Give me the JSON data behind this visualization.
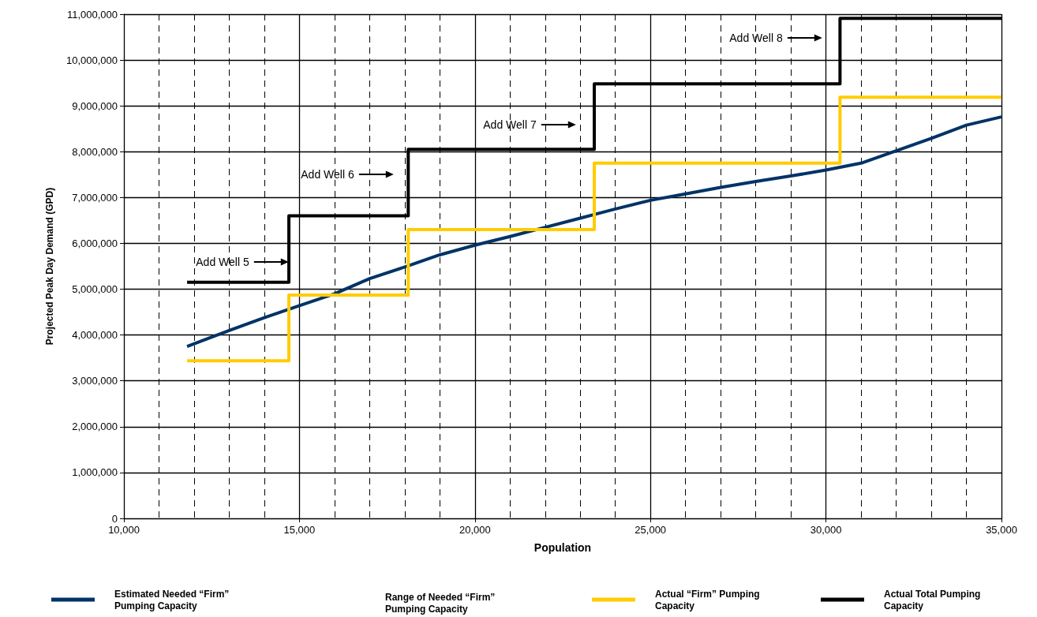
{
  "chart_data": {
    "type": "line",
    "xlabel": "Population",
    "ylabel": "Projected Peak Day Demand (GPD)",
    "xlim": [
      10000,
      35000
    ],
    "xticks": [
      {
        "value": 10000,
        "label": "10,000"
      },
      {
        "value": 11000,
        "label": null
      },
      {
        "value": 12000,
        "label": null
      },
      {
        "value": 13000,
        "label": null
      },
      {
        "value": 14000,
        "label": null
      },
      {
        "value": 15000,
        "label": "15,000"
      },
      {
        "value": 16000,
        "label": null
      },
      {
        "value": 17000,
        "label": null
      },
      {
        "value": 18000,
        "label": null
      },
      {
        "value": 19000,
        "label": null
      },
      {
        "value": 20000,
        "label": "20,000"
      },
      {
        "value": 21000,
        "label": null
      },
      {
        "value": 22000,
        "label": null
      },
      {
        "value": 23000,
        "label": null
      },
      {
        "value": 24000,
        "label": null
      },
      {
        "value": 25000,
        "label": "25,000"
      },
      {
        "value": 26000,
        "label": null
      },
      {
        "value": 27000,
        "label": null
      },
      {
        "value": 28000,
        "label": null
      },
      {
        "value": 29000,
        "label": null
      },
      {
        "value": 30000,
        "label": "30,000"
      },
      {
        "value": 31000,
        "label": null
      },
      {
        "value": 32000,
        "label": null
      },
      {
        "value": 33000,
        "label": null
      },
      {
        "value": 34000,
        "label": null
      },
      {
        "value": 35000,
        "label": "35,000"
      }
    ],
    "ylim": [
      0,
      11000000
    ],
    "yticks": [
      0,
      {
        "value": 1000000,
        "label": "1,000,000"
      },
      {
        "value": 2000000,
        "label": "2,000,000"
      },
      {
        "value": 3000000,
        "label": "3,000,000"
      },
      {
        "value": 4000000,
        "label": "4,000,000"
      },
      {
        "value": 5000000,
        "label": "5,000,000"
      },
      {
        "value": 6000000,
        "label": "6,000,000"
      },
      {
        "value": 7000000,
        "label": "7,000,000"
      },
      {
        "value": 8000000,
        "label": "8,000,000"
      },
      {
        "value": 9000000,
        "label": "9,000,000"
      },
      {
        "value": 10000000,
        "label": "10,000,000"
      },
      {
        "value": 11000000,
        "label": "11,000,000"
      }
    ],
    "grid": true,
    "legend": "bottom",
    "marker": "none",
    "series": [
      {
        "name": "Estimated Needed “Firm” Pumping Capacity",
        "type": "line",
        "color": "#003366",
        "x": [
          11800,
          13000,
          14000,
          15000,
          16000,
          17000,
          18100,
          19000,
          20000,
          21000,
          22000,
          23000,
          24000,
          25000,
          26000,
          27000,
          28000,
          29000,
          30000,
          31000,
          32000,
          33000,
          34000,
          35000
        ],
        "values": [
          3750000,
          4100000,
          4380000,
          4640000,
          4900000,
          5230000,
          5510000,
          5750000,
          5960000,
          6150000,
          6350000,
          6550000,
          6750000,
          6940000,
          7080000,
          7220000,
          7350000,
          7470000,
          7600000,
          7750000,
          8020000,
          8290000,
          8580000,
          8760000
        ]
      },
      {
        "name": "Actual “Firm” Pumping Capacity",
        "type": "step",
        "color": "#ffcc00",
        "x": [
          11800,
          14700,
          18100,
          23400,
          30400,
          35000
        ],
        "values": [
          3440000,
          4870000,
          6300000,
          7750000,
          9190000,
          9190000
        ]
      },
      {
        "name": "Actual Total Pumping Capacity",
        "type": "step",
        "color": "#000000",
        "x": [
          11800,
          14700,
          18100,
          23400,
          30400,
          35000
        ],
        "values": [
          5150000,
          6600000,
          8050000,
          9480000,
          10910000,
          10910000
        ]
      }
    ],
    "annotations": [
      "Add Well 5",
      "Add Well 6",
      "Add Well 7",
      "Add Well 8",
      "Range of Needed “Firm” Pumping Capacity"
    ]
  }
}
